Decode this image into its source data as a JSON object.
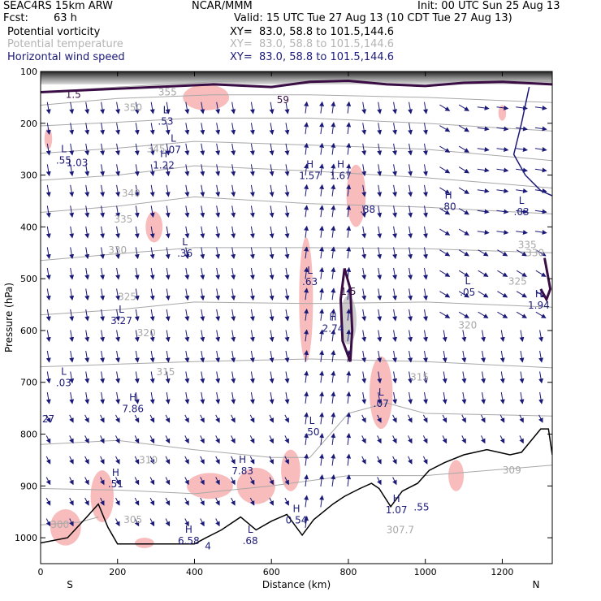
{
  "header": {
    "model": "SEAC4RS 15km ARW",
    "org": "NCAR/MMM",
    "init": "Init: 00 UTC Sun 25 Aug 13",
    "fcst_label": "Fcst:",
    "fcst_value": "63 h",
    "valid": "Valid: 15 UTC Tue 27 Aug 13 (10 CDT Tue 27 Aug 13)",
    "fields": [
      {
        "name": "Potential vorticity",
        "xy": "XY=  83.0, 58.8 to 101.5,144.6",
        "color": "#000000"
      },
      {
        "name": "Potential temperature",
        "xy": "XY=  83.0, 58.8 to 101.5,144.6",
        "color": "#b4b4b4"
      },
      {
        "name": "Horizontal wind speed",
        "xy": "XY=  83.0, 58.8 to 101.5,144.6",
        "color": "#1c1a78"
      }
    ]
  },
  "colors": {
    "pv_line": "#3a0d45",
    "theta_line": "#a8a8a8",
    "wind_arrow": "#1c1a78",
    "shade": "#f8b8b8",
    "terrain": "#000000"
  },
  "chart_data": {
    "type": "cross-section",
    "xlabel": "Distance (km)",
    "ylabel": "Pressure (hPa)",
    "xlim": [
      0,
      1330
    ],
    "ylim": [
      1050,
      100
    ],
    "x_ticks": [
      0,
      200,
      400,
      600,
      800,
      1000,
      1200
    ],
    "y_ticks": [
      100,
      200,
      300,
      400,
      500,
      600,
      700,
      800,
      900,
      1000
    ],
    "end_labels": {
      "left": "S",
      "right": "N"
    },
    "terrain": [
      [
        0,
        1010
      ],
      [
        70,
        1000
      ],
      [
        120,
        960
      ],
      [
        150,
        935
      ],
      [
        175,
        980
      ],
      [
        200,
        1012
      ],
      [
        300,
        1012
      ],
      [
        400,
        1012
      ],
      [
        430,
        1000
      ],
      [
        470,
        985
      ],
      [
        520,
        960
      ],
      [
        560,
        985
      ],
      [
        600,
        968
      ],
      [
        640,
        955
      ],
      [
        680,
        995
      ],
      [
        710,
        965
      ],
      [
        760,
        935
      ],
      [
        790,
        920
      ],
      [
        830,
        905
      ],
      [
        860,
        895
      ],
      [
        880,
        905
      ],
      [
        910,
        940
      ],
      [
        940,
        910
      ],
      [
        980,
        895
      ],
      [
        1010,
        870
      ],
      [
        1050,
        855
      ],
      [
        1100,
        840
      ],
      [
        1160,
        830
      ],
      [
        1220,
        840
      ],
      [
        1250,
        835
      ],
      [
        1300,
        790
      ],
      [
        1320,
        790
      ],
      [
        1330,
        840
      ]
    ],
    "theta_contours": [
      {
        "label": "355",
        "points": [
          [
            0,
            140
          ],
          [
            200,
            130
          ],
          [
            450,
            120
          ],
          [
            700,
            115
          ],
          [
            1000,
            118
          ],
          [
            1330,
            120
          ]
        ]
      },
      {
        "label": "350",
        "points": [
          [
            0,
            165
          ],
          [
            200,
            152
          ],
          [
            450,
            145
          ],
          [
            700,
            145
          ],
          [
            1000,
            150
          ],
          [
            1330,
            160
          ]
        ]
      },
      {
        "label": "345",
        "points": [
          [
            0,
            205
          ],
          [
            200,
            198
          ],
          [
            400,
            190
          ],
          [
            700,
            190
          ],
          [
            1000,
            200
          ],
          [
            1330,
            215
          ]
        ]
      },
      {
        "label": "340",
        "points": [
          [
            0,
            258
          ],
          [
            200,
            248
          ],
          [
            400,
            235
          ],
          [
            700,
            242
          ],
          [
            1000,
            250
          ],
          [
            1330,
            272
          ]
        ]
      },
      {
        "label": "335",
        "points": [
          [
            0,
            310
          ],
          [
            200,
            300
          ],
          [
            400,
            282
          ],
          [
            700,
            292
          ],
          [
            1000,
            305
          ],
          [
            1330,
            325
          ]
        ]
      },
      {
        "label": "330",
        "points": [
          [
            0,
            372
          ],
          [
            200,
            360
          ],
          [
            400,
            342
          ],
          [
            700,
            355
          ],
          [
            1000,
            362
          ],
          [
            1330,
            375
          ]
        ]
      },
      {
        "label": "325",
        "points": [
          [
            0,
            465
          ],
          [
            200,
            452
          ],
          [
            400,
            440
          ],
          [
            700,
            440
          ],
          [
            1000,
            442
          ],
          [
            1330,
            450
          ]
        ]
      },
      {
        "label": "320",
        "points": [
          [
            0,
            570
          ],
          [
            200,
            560
          ],
          [
            400,
            545
          ],
          [
            700,
            548
          ],
          [
            1000,
            545
          ],
          [
            1330,
            555
          ]
        ]
      },
      {
        "label": "315",
        "points": [
          [
            0,
            670
          ],
          [
            200,
            665
          ],
          [
            400,
            660
          ],
          [
            700,
            655
          ],
          [
            1000,
            660
          ],
          [
            1330,
            672
          ]
        ]
      },
      {
        "label": "310",
        "points": [
          [
            0,
            820
          ],
          [
            200,
            812
          ],
          [
            400,
            830
          ],
          [
            600,
            845
          ],
          [
            700,
            845
          ],
          [
            800,
            760
          ],
          [
            900,
            740
          ],
          [
            1000,
            760
          ],
          [
            1330,
            765
          ]
        ]
      },
      {
        "label": "305",
        "points": [
          [
            0,
            905
          ],
          [
            200,
            908
          ],
          [
            400,
            915
          ],
          [
            600,
            900
          ],
          [
            700,
            890
          ],
          [
            800,
            880
          ],
          [
            1000,
            880
          ],
          [
            1330,
            860
          ]
        ]
      },
      {
        "label": "300",
        "points": [
          [
            0,
            975
          ],
          [
            100,
            970
          ],
          [
            150,
            960
          ]
        ]
      }
    ],
    "theta_labels": [
      {
        "label": "355",
        "x": 330,
        "p": 140
      },
      {
        "label": "350",
        "x": 240,
        "p": 170
      },
      {
        "label": "345",
        "x": 300,
        "p": 250
      },
      {
        "label": "340",
        "x": 235,
        "p": 335
      },
      {
        "label": "335",
        "x": 215,
        "p": 385
      },
      {
        "label": "330",
        "x": 200,
        "p": 445
      },
      {
        "label": "325",
        "x": 225,
        "p": 535
      },
      {
        "label": "320",
        "x": 275,
        "p": 605
      },
      {
        "label": "315",
        "x": 325,
        "p": 680
      },
      {
        "label": "310",
        "x": 280,
        "p": 850
      },
      {
        "label": "305",
        "x": 240,
        "p": 965
      },
      {
        "label": "300",
        "x": 50,
        "p": 975
      },
      {
        "label": "335",
        "x": 1265,
        "p": 435
      },
      {
        "label": "325",
        "x": 1240,
        "p": 505
      },
      {
        "label": "320",
        "x": 1110,
        "p": 590
      },
      {
        "label": "315",
        "x": 985,
        "p": 690
      },
      {
        "label": "309",
        "x": 1225,
        "p": 870
      },
      {
        "label": "307.7",
        "x": 935,
        "p": 985
      },
      {
        "label": "330",
        "x": 1285,
        "p": 450
      }
    ],
    "pv_labels": [
      {
        "label": "1.5",
        "x": 85,
        "p": 145
      },
      {
        "label": "59",
        "x": 630,
        "p": 155
      },
      {
        "label": "1.5",
        "x": 800,
        "p": 525
      }
    ],
    "extrema": [
      {
        "kind": "L",
        "x": 325,
        "p": 190,
        "value": ".53"
      },
      {
        "kind": "L",
        "x": 345,
        "p": 245,
        "value": ".07"
      },
      {
        "kind": "H",
        "x": 320,
        "p": 275,
        "value": "1.22"
      },
      {
        "kind": "L",
        "x": 60,
        "p": 265,
        "value": ".55"
      },
      {
        "kind": "",
        "x": 95,
        "p": 270,
        "value": "1.03"
      },
      {
        "kind": "H",
        "x": 700,
        "p": 295,
        "value": "1.57"
      },
      {
        "kind": "H",
        "x": 780,
        "p": 295,
        "value": "1.67"
      },
      {
        "kind": "",
        "x": 850,
        "p": 360,
        "value": ".88"
      },
      {
        "kind": "H",
        "x": 1060,
        "p": 355,
        "value": ".80"
      },
      {
        "kind": "L",
        "x": 1250,
        "p": 365,
        "value": ".03"
      },
      {
        "kind": "L",
        "x": 375,
        "p": 445,
        "value": ".36"
      },
      {
        "kind": "L",
        "x": 700,
        "p": 500,
        "value": ".63"
      },
      {
        "kind": "L",
        "x": 1110,
        "p": 520,
        "value": ".05"
      },
      {
        "kind": "H",
        "x": 1295,
        "p": 545,
        "value": "1.94"
      },
      {
        "kind": "H",
        "x": 760,
        "p": 590,
        "value": "2.74"
      },
      {
        "kind": "L",
        "x": 210,
        "p": 575,
        "value": "3.27"
      },
      {
        "kind": "L",
        "x": 60,
        "p": 695,
        "value": ".03"
      },
      {
        "kind": "",
        "x": 20,
        "p": 765,
        "value": "27"
      },
      {
        "kind": "H",
        "x": 240,
        "p": 745,
        "value": "7.86"
      },
      {
        "kind": "L",
        "x": 885,
        "p": 735,
        "value": ".07"
      },
      {
        "kind": "L",
        "x": 705,
        "p": 790,
        "value": ".50"
      },
      {
        "kind": "H",
        "x": 525,
        "p": 865,
        "value": "7.83"
      },
      {
        "kind": "H",
        "x": 195,
        "p": 890,
        "value": ".51"
      },
      {
        "kind": "H",
        "x": 665,
        "p": 960,
        "value": "0.54"
      },
      {
        "kind": "H",
        "x": 925,
        "p": 940,
        "value": "1.07"
      },
      {
        "kind": "",
        "x": 990,
        "p": 935,
        "value": ".55"
      },
      {
        "kind": "H",
        "x": 385,
        "p": 1000,
        "value": "6.58"
      },
      {
        "kind": "",
        "x": 435,
        "p": 1010,
        "value": "4"
      },
      {
        "kind": "L",
        "x": 545,
        "p": 1000,
        "value": ".68"
      }
    ],
    "wind_field": {
      "x_columns": [
        20,
        80,
        120,
        160,
        200,
        250,
        290,
        330,
        380,
        420,
        460,
        500,
        550,
        600,
        640,
        690,
        730,
        760,
        800,
        840,
        880,
        920,
        960,
        1000,
        1050,
        1100,
        1150,
        1200,
        1250,
        1300
      ],
      "p_rows": [
        170,
        210,
        250,
        290,
        330,
        370,
        410,
        450,
        490,
        530,
        570,
        610,
        650,
        690,
        730,
        770,
        810,
        850,
        890,
        930,
        970
      ]
    }
  }
}
